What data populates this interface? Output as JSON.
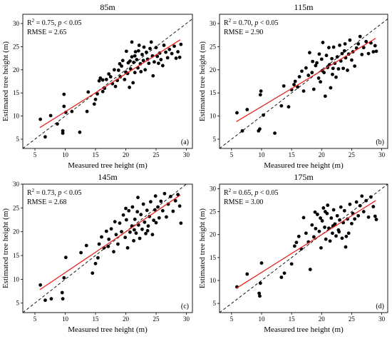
{
  "colors": {
    "point": "#000000",
    "regression": "#e8231f",
    "identity": "#000000",
    "axis": "#000000",
    "background": "#ffffff"
  },
  "chart_data": [
    {
      "type": "scatter",
      "title": "85m",
      "xlabel": "Measured tree height (m)",
      "ylabel": "Estimated tree height (m)",
      "xlim": [
        3,
        31
      ],
      "ylim": [
        3,
        32
      ],
      "xticks": [
        5,
        10,
        15,
        20,
        25,
        30
      ],
      "yticks": [
        5,
        10,
        15,
        20,
        25,
        30
      ],
      "grid": false,
      "stats": {
        "r2_prefix": "R",
        "r2_exp": "2",
        "r2_rest": " = 0.75, ",
        "p_italic": "p",
        "p_rest": " < 0.05",
        "rmse": "RMSE = 2.65"
      },
      "panel_label": "(a)",
      "regression": {
        "x1": 5.8,
        "y1": 7.5,
        "x2": 29.0,
        "y2": 26.5
      },
      "identity_line": true,
      "points": [
        [
          5.9,
          9.3
        ],
        [
          6.7,
          5.5
        ],
        [
          7.6,
          10.1
        ],
        [
          8.7,
          8.3
        ],
        [
          9.6,
          6.3
        ],
        [
          9.6,
          6.8
        ],
        [
          9.8,
          12.1
        ],
        [
          9.8,
          14.7
        ],
        [
          10.1,
          10.8
        ],
        [
          11.1,
          11.0
        ],
        [
          12.4,
          6.5
        ],
        [
          13.6,
          11.0
        ],
        [
          13.8,
          15.2
        ],
        [
          14.8,
          12.6
        ],
        [
          15.0,
          13.6
        ],
        [
          15.3,
          14.8
        ],
        [
          15.6,
          17.6
        ],
        [
          15.8,
          18.2
        ],
        [
          16.2,
          17.8
        ],
        [
          16.2,
          15.3
        ],
        [
          16.5,
          16.0
        ],
        [
          16.8,
          17.9
        ],
        [
          17.2,
          19.1
        ],
        [
          17.8,
          17.0
        ],
        [
          18.1,
          20.0
        ],
        [
          18.3,
          16.4
        ],
        [
          18.6,
          17.7
        ],
        [
          18.8,
          19.9
        ],
        [
          19.1,
          18.5
        ],
        [
          19.3,
          20.8
        ],
        [
          19.5,
          22.0
        ],
        [
          19.8,
          17.9
        ],
        [
          20.0,
          19.5
        ],
        [
          20.1,
          24.0
        ],
        [
          20.3,
          19.2
        ],
        [
          20.4,
          21.5
        ],
        [
          20.6,
          16.2
        ],
        [
          20.8,
          20.2
        ],
        [
          21.0,
          22.8
        ],
        [
          21.0,
          26.0
        ],
        [
          21.2,
          17.2
        ],
        [
          21.3,
          21.6
        ],
        [
          21.5,
          19.4
        ],
        [
          21.6,
          23.9
        ],
        [
          21.8,
          22.2
        ],
        [
          22.0,
          20.4
        ],
        [
          22.2,
          25.3
        ],
        [
          22.4,
          21.3
        ],
        [
          22.5,
          19.6
        ],
        [
          22.7,
          23.3
        ],
        [
          22.9,
          22.0
        ],
        [
          23.0,
          24.9
        ],
        [
          23.2,
          20.0
        ],
        [
          23.4,
          23.8
        ],
        [
          23.6,
          22.3
        ],
        [
          23.8,
          21.4
        ],
        [
          24.0,
          24.6
        ],
        [
          24.2,
          26.0
        ],
        [
          24.4,
          23.0
        ],
        [
          24.5,
          18.7
        ],
        [
          24.7,
          21.7
        ],
        [
          25.0,
          24.8
        ],
        [
          25.2,
          22.9
        ],
        [
          25.4,
          21.4
        ],
        [
          25.6,
          23.6
        ],
        [
          25.8,
          22.2
        ],
        [
          26.1,
          20.9
        ],
        [
          26.3,
          25.3
        ],
        [
          26.6,
          23.8
        ],
        [
          26.9,
          22.6
        ],
        [
          27.2,
          24.4
        ],
        [
          27.6,
          23.5
        ],
        [
          28.0,
          25.1
        ],
        [
          28.3,
          22.5
        ],
        [
          28.6,
          23.9
        ],
        [
          28.9,
          22.7
        ],
        [
          29.1,
          25.5
        ],
        [
          21.5,
          23.0
        ],
        [
          22.1,
          24.1
        ],
        [
          20.7,
          21.9
        ],
        [
          19.0,
          21.3
        ],
        [
          17.5,
          18.5
        ]
      ]
    },
    {
      "type": "scatter",
      "title": "115m",
      "xlabel": "Measured tree height (m)",
      "ylabel": "Estimated tree height (m)",
      "xlim": [
        3,
        31
      ],
      "ylim": [
        3,
        32
      ],
      "xticks": [
        5,
        10,
        15,
        20,
        25,
        30
      ],
      "yticks": [
        5,
        10,
        15,
        20,
        25,
        30
      ],
      "grid": false,
      "stats": {
        "r2_prefix": "R",
        "r2_exp": "2",
        "r2_rest": " = 0.70, ",
        "p_italic": "p",
        "p_rest": " < 0.05",
        "rmse": "RMSE = 2.90"
      },
      "panel_label": "(b)",
      "regression": {
        "x1": 5.8,
        "y1": 8.8,
        "x2": 29.0,
        "y2": 26.8
      },
      "identity_line": true,
      "points": [
        [
          5.9,
          10.7
        ],
        [
          6.8,
          6.8
        ],
        [
          7.6,
          11.4
        ],
        [
          9.5,
          6.8
        ],
        [
          9.7,
          7.2
        ],
        [
          9.8,
          14.6
        ],
        [
          9.9,
          15.4
        ],
        [
          10.3,
          10.2
        ],
        [
          12.2,
          6.3
        ],
        [
          13.3,
          12.2
        ],
        [
          13.7,
          16.5
        ],
        [
          14.5,
          12.0
        ],
        [
          15.0,
          15.7
        ],
        [
          15.4,
          16.8
        ],
        [
          15.6,
          17.5
        ],
        [
          16.0,
          16.3
        ],
        [
          16.3,
          18.5
        ],
        [
          16.7,
          19.7
        ],
        [
          17.0,
          15.4
        ],
        [
          17.4,
          20.4
        ],
        [
          17.8,
          18.8
        ],
        [
          18.0,
          23.7
        ],
        [
          18.4,
          19.4
        ],
        [
          18.7,
          15.8
        ],
        [
          19.0,
          20.9
        ],
        [
          19.2,
          21.5
        ],
        [
          19.5,
          18.2
        ],
        [
          19.8,
          17.4
        ],
        [
          20.0,
          22.3
        ],
        [
          20.2,
          25.9
        ],
        [
          20.4,
          19.4
        ],
        [
          20.6,
          14.3
        ],
        [
          20.8,
          23.1
        ],
        [
          21.0,
          20.5
        ],
        [
          21.2,
          24.8
        ],
        [
          21.3,
          21.1
        ],
        [
          21.5,
          16.1
        ],
        [
          21.7,
          22.4
        ],
        [
          21.8,
          19.0
        ],
        [
          22.0,
          24.9
        ],
        [
          22.2,
          21.4
        ],
        [
          22.4,
          18.4
        ],
        [
          22.6,
          22.8
        ],
        [
          22.8,
          20.2
        ],
        [
          23.0,
          25.3
        ],
        [
          23.2,
          21.9
        ],
        [
          23.4,
          23.5
        ],
        [
          23.6,
          20.3
        ],
        [
          23.8,
          24.1
        ],
        [
          24.0,
          22.6
        ],
        [
          24.3,
          19.9
        ],
        [
          24.5,
          23.4
        ],
        [
          24.7,
          26.4
        ],
        [
          25.0,
          22.1
        ],
        [
          25.2,
          23.9
        ],
        [
          25.5,
          20.8
        ],
        [
          25.8,
          24.7
        ],
        [
          26.1,
          25.6
        ],
        [
          26.4,
          27.2
        ],
        [
          26.7,
          23.3
        ],
        [
          27.0,
          24.8
        ],
        [
          27.4,
          26.1
        ],
        [
          27.8,
          23.5
        ],
        [
          28.2,
          25.8
        ],
        [
          28.6,
          23.9
        ],
        [
          28.9,
          25.2
        ],
        [
          29.1,
          24.0
        ],
        [
          20.1,
          19.8
        ],
        [
          21.9,
          20.3
        ],
        [
          19.6,
          23.4
        ],
        [
          18.5,
          21.8
        ],
        [
          23.9,
          25.6
        ]
      ]
    },
    {
      "type": "scatter",
      "title": "145m",
      "xlabel": "Measured tree height (m)",
      "ylabel": "Estimated tree height (m)",
      "xlim": [
        3,
        31
      ],
      "ylim": [
        3,
        30
      ],
      "xticks": [
        5,
        10,
        15,
        20,
        25,
        30
      ],
      "yticks": [
        5,
        10,
        15,
        20,
        25,
        30
      ],
      "grid": false,
      "stats": {
        "r2_prefix": "R",
        "r2_exp": "2",
        "r2_rest": " = 0.73, ",
        "p_italic": "p",
        "p_rest": " < 0.05",
        "rmse": "RMSE = 2.68"
      },
      "panel_label": "(c)",
      "regression": {
        "x1": 5.8,
        "y1": 7.8,
        "x2": 29.0,
        "y2": 27.7
      },
      "identity_line": true,
      "points": [
        [
          5.9,
          8.8
        ],
        [
          6.7,
          5.6
        ],
        [
          7.7,
          5.9
        ],
        [
          9.5,
          7.2
        ],
        [
          9.6,
          5.9
        ],
        [
          9.8,
          10.3
        ],
        [
          10.1,
          14.6
        ],
        [
          12.6,
          15.6
        ],
        [
          13.5,
          17.1
        ],
        [
          14.5,
          11.3
        ],
        [
          15.0,
          13.3
        ],
        [
          15.4,
          14.5
        ],
        [
          15.6,
          17.4
        ],
        [
          16.0,
          18.9
        ],
        [
          16.4,
          16.6
        ],
        [
          16.8,
          20.1
        ],
        [
          17.2,
          18.4
        ],
        [
          17.6,
          20.6
        ],
        [
          18.0,
          15.8
        ],
        [
          18.4,
          19.4
        ],
        [
          18.7,
          17.4
        ],
        [
          19.0,
          21.8
        ],
        [
          19.3,
          20.0
        ],
        [
          19.6,
          23.5
        ],
        [
          19.9,
          18.8
        ],
        [
          20.1,
          22.5
        ],
        [
          20.3,
          16.6
        ],
        [
          20.5,
          24.4
        ],
        [
          20.7,
          19.9
        ],
        [
          21.0,
          21.2
        ],
        [
          21.1,
          25.2
        ],
        [
          21.3,
          18.1
        ],
        [
          21.5,
          22.6
        ],
        [
          21.7,
          19.7
        ],
        [
          21.9,
          24.2
        ],
        [
          22.1,
          21.4
        ],
        [
          22.3,
          18.6
        ],
        [
          22.5,
          23.6
        ],
        [
          22.7,
          20.5
        ],
        [
          22.9,
          25.8
        ],
        [
          23.1,
          22.0
        ],
        [
          23.3,
          19.6
        ],
        [
          23.5,
          24.5
        ],
        [
          23.7,
          21.2
        ],
        [
          23.9,
          23.2
        ],
        [
          24.1,
          26.3
        ],
        [
          24.4,
          19.4
        ],
        [
          24.6,
          22.4
        ],
        [
          24.8,
          24.6
        ],
        [
          25.0,
          21.9
        ],
        [
          25.3,
          25.2
        ],
        [
          25.5,
          22.9
        ],
        [
          25.8,
          26.4
        ],
        [
          26.1,
          24.4
        ],
        [
          26.4,
          28.0
        ],
        [
          26.7,
          23.1
        ],
        [
          27.0,
          25.8
        ],
        [
          27.4,
          27.4
        ],
        [
          27.8,
          24.3
        ],
        [
          28.2,
          26.5
        ],
        [
          28.6,
          27.8
        ],
        [
          28.9,
          25.4
        ],
        [
          29.1,
          21.8
        ],
        [
          20.0,
          24.9
        ],
        [
          21.4,
          20.4
        ],
        [
          22.0,
          27.2
        ],
        [
          18.2,
          22.1
        ],
        [
          17.1,
          16.9
        ],
        [
          23.6,
          20.2
        ],
        [
          24.9,
          27.5
        ]
      ]
    },
    {
      "type": "scatter",
      "title": "175m",
      "xlabel": "Measured tree height (m)",
      "ylabel": "Estimated tree height (m)",
      "xlim": [
        3,
        31
      ],
      "ylim": [
        3,
        31
      ],
      "xticks": [
        5,
        10,
        15,
        20,
        25,
        30
      ],
      "yticks": [
        5,
        10,
        15,
        20,
        25,
        30
      ],
      "grid": false,
      "stats": {
        "r2_prefix": "R",
        "r2_exp": "2",
        "r2_rest": " = 0.65, ",
        "p_italic": "p",
        "p_rest": " < 0.05",
        "rmse": "RMSE = 3.00"
      },
      "panel_label": "(d)",
      "regression": {
        "x1": 5.8,
        "y1": 8.3,
        "x2": 29.0,
        "y2": 27.4
      },
      "identity_line": true,
      "points": [
        [
          5.9,
          8.6
        ],
        [
          7.6,
          11.4
        ],
        [
          9.6,
          7.2
        ],
        [
          9.7,
          6.6
        ],
        [
          9.8,
          9.4
        ],
        [
          10.0,
          13.8
        ],
        [
          13.3,
          10.7
        ],
        [
          13.8,
          11.6
        ],
        [
          15.0,
          13.6
        ],
        [
          15.5,
          17.5
        ],
        [
          15.8,
          18.3
        ],
        [
          16.2,
          19.6
        ],
        [
          16.6,
          16.9
        ],
        [
          17.0,
          23.7
        ],
        [
          17.4,
          20.3
        ],
        [
          17.8,
          18.4
        ],
        [
          18.1,
          12.4
        ],
        [
          18.4,
          22.1
        ],
        [
          18.7,
          19.5
        ],
        [
          19.0,
          21.3
        ],
        [
          19.3,
          24.4
        ],
        [
          19.6,
          20.7
        ],
        [
          19.9,
          17.1
        ],
        [
          20.1,
          23.0
        ],
        [
          20.3,
          25.8
        ],
        [
          20.5,
          21.6
        ],
        [
          20.7,
          19.0
        ],
        [
          20.9,
          24.6
        ],
        [
          21.0,
          26.4
        ],
        [
          21.2,
          21.4
        ],
        [
          21.4,
          18.6
        ],
        [
          21.6,
          23.6
        ],
        [
          21.8,
          20.3
        ],
        [
          22.0,
          25.4
        ],
        [
          22.2,
          22.3
        ],
        [
          22.4,
          19.7
        ],
        [
          22.6,
          24.1
        ],
        [
          22.8,
          21.0
        ],
        [
          23.0,
          23.2
        ],
        [
          23.2,
          26.0
        ],
        [
          23.4,
          19.2
        ],
        [
          23.6,
          22.6
        ],
        [
          23.8,
          25.2
        ],
        [
          24.0,
          17.3
        ],
        [
          24.3,
          23.4
        ],
        [
          24.5,
          20.3
        ],
        [
          24.7,
          26.6
        ],
        [
          25.0,
          22.4
        ],
        [
          25.2,
          24.6
        ],
        [
          25.5,
          23.4
        ],
        [
          25.8,
          27.1
        ],
        [
          26.1,
          24.1
        ],
        [
          26.4,
          26.3
        ],
        [
          26.7,
          28.4
        ],
        [
          27.0,
          25.0
        ],
        [
          27.4,
          27.4
        ],
        [
          27.8,
          23.8
        ],
        [
          28.2,
          28.2
        ],
        [
          28.6,
          26.1
        ],
        [
          28.9,
          24.0
        ],
        [
          29.1,
          23.3
        ],
        [
          20.6,
          25.0
        ],
        [
          21.9,
          21.9
        ],
        [
          19.8,
          23.6
        ],
        [
          22.9,
          20.6
        ],
        [
          24.1,
          19.6
        ],
        [
          18.9,
          24.9
        ]
      ]
    }
  ]
}
